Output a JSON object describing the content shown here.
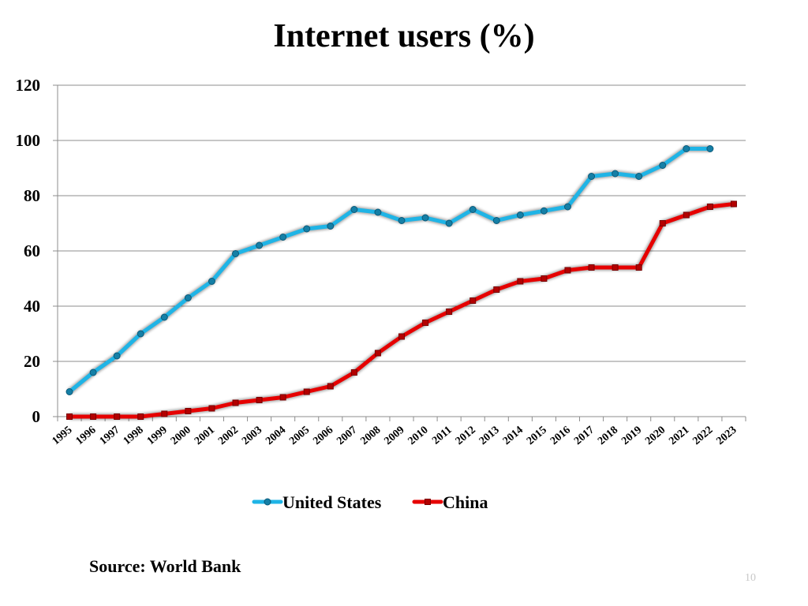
{
  "slide": {
    "title": "Internet users (%)",
    "source": "Source: World Bank",
    "page_number": "10"
  },
  "chart_data": {
    "type": "line",
    "title": "Internet users (%)",
    "xlabel": "",
    "ylabel": "",
    "ylim": [
      0,
      120
    ],
    "yticks": [
      0,
      20,
      40,
      60,
      80,
      100,
      120
    ],
    "grid": true,
    "legend_position": "bottom",
    "categories": [
      "1995",
      "1996",
      "1997",
      "1998",
      "1999",
      "2000",
      "2001",
      "2002",
      "2003",
      "2004",
      "2005",
      "2006",
      "2007",
      "2008",
      "2009",
      "2010",
      "2011",
      "2012",
      "2013",
      "2014",
      "2015",
      "2016",
      "2017",
      "2018",
      "2019",
      "2020",
      "2021",
      "2022",
      "2023"
    ],
    "series": [
      {
        "name": "United States",
        "color": "#1fb4e6",
        "marker": "circle",
        "values": [
          9,
          16,
          22,
          30,
          36,
          43,
          49,
          59,
          62,
          65,
          68,
          69,
          75,
          74,
          71,
          72,
          70,
          75,
          71,
          73,
          74.5,
          76,
          87,
          88,
          87,
          91,
          97,
          97,
          null
        ]
      },
      {
        "name": "China",
        "color": "#e60000",
        "marker": "square",
        "values": [
          0,
          0,
          0,
          0,
          1,
          2,
          3,
          5,
          6,
          7,
          9,
          11,
          16,
          23,
          29,
          34,
          38,
          42,
          46,
          49,
          50,
          53,
          54,
          54,
          54,
          70,
          73,
          76,
          77
        ]
      }
    ]
  }
}
